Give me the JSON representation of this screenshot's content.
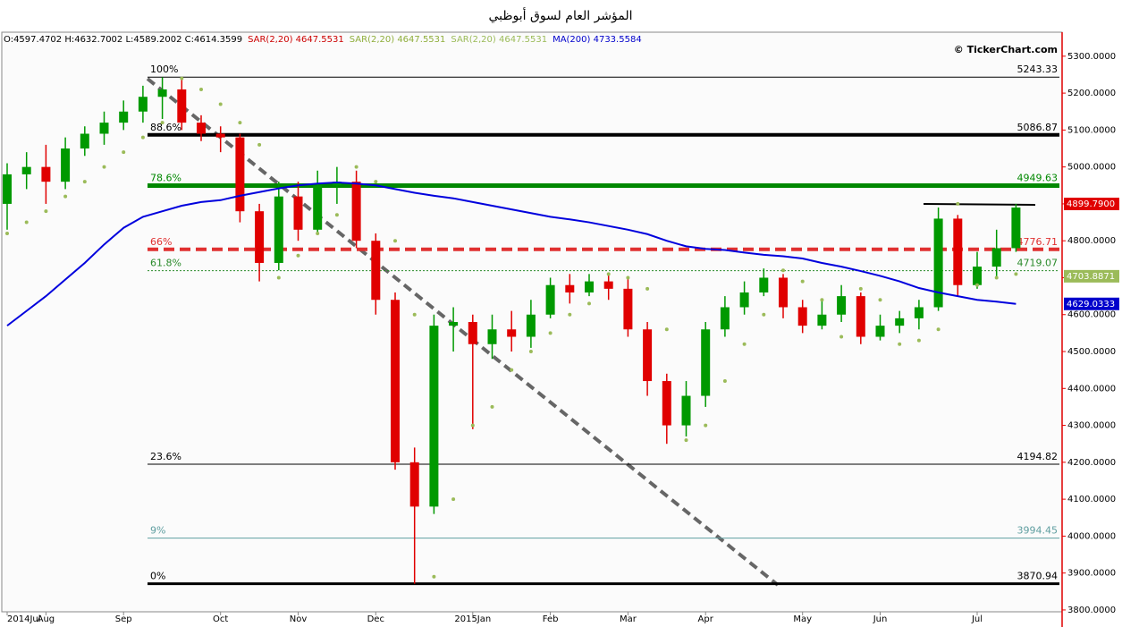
{
  "chart_data": {
    "type": "candlestick",
    "title": "المؤشر العام لسوق أبوظبي",
    "info": [
      {
        "text": "O:4597.4702 H:4632.7002 L:4589.2002 C:4614.3599",
        "color": "#000000"
      },
      {
        "text": "SAR(2,20) 4647.5531",
        "color": "#cc0000"
      },
      {
        "text": "SAR(2,20) 4647.5531",
        "color": "#8fae3c"
      },
      {
        "text": "SAR(2,20) 4647.5531",
        "color": "#9bbb59"
      },
      {
        "text": "MA(200) 4733.5584",
        "color": "#0000cc"
      }
    ],
    "watermark": "© TickerChart.com",
    "categories": [
      "2014Jul",
      null,
      "Aug",
      null,
      null,
      null,
      "Sep",
      null,
      null,
      null,
      null,
      "Oct",
      null,
      null,
      null,
      "Nov",
      null,
      null,
      null,
      "Dec",
      null,
      null,
      null,
      null,
      "2015Jan",
      null,
      null,
      null,
      "Feb",
      null,
      null,
      null,
      "Mar",
      null,
      null,
      null,
      "Apr",
      null,
      null,
      null,
      null,
      "May",
      null,
      null,
      null,
      "Jun",
      null,
      null,
      null,
      null,
      "Jul",
      null,
      null
    ],
    "open": [
      4900,
      4980,
      5000,
      4960,
      5050,
      5090,
      5120,
      5150,
      5190,
      5210,
      5120,
      5090,
      5080,
      4880,
      4740,
      4920,
      4830,
      4950,
      4960,
      4800,
      4640,
      4200,
      4080,
      4570,
      4580,
      4520,
      4560,
      4540,
      4600,
      4680,
      4660,
      4690,
      4670,
      4560,
      4420,
      4300,
      4380,
      4560,
      4620,
      4660,
      4700,
      4620,
      4570,
      4600,
      4650,
      4540,
      4570,
      4590,
      4620,
      4860,
      4680,
      4730,
      4780
    ],
    "high": [
      5010,
      5040,
      5060,
      5080,
      5110,
      5150,
      5180,
      5220,
      5243,
      5243,
      5140,
      5110,
      5090,
      4900,
      4960,
      4960,
      4990,
      5000,
      4990,
      4820,
      4660,
      4240,
      4600,
      4620,
      4600,
      4600,
      4610,
      4640,
      4700,
      4710,
      4710,
      4710,
      4700,
      4580,
      4440,
      4420,
      4580,
      4650,
      4690,
      4725,
      4710,
      4640,
      4640,
      4680,
      4660,
      4600,
      4610,
      4640,
      4890,
      4870,
      4770,
      4830,
      4900
    ],
    "low": [
      4830,
      4940,
      4900,
      4940,
      5030,
      5060,
      5100,
      5120,
      5130,
      5100,
      5070,
      5040,
      4850,
      4690,
      4720,
      4800,
      4820,
      4900,
      4780,
      4600,
      4180,
      3871,
      4060,
      4500,
      4290,
      4480,
      4500,
      4510,
      4590,
      4630,
      4650,
      4640,
      4540,
      4380,
      4250,
      4270,
      4350,
      4540,
      4600,
      4650,
      4590,
      4550,
      4560,
      4580,
      4520,
      4530,
      4550,
      4560,
      4610,
      4650,
      4670,
      4700,
      4770
    ],
    "close": [
      4980,
      5000,
      4960,
      5050,
      5090,
      5120,
      5150,
      5190,
      5210,
      5120,
      5090,
      5080,
      4880,
      4740,
      4920,
      4830,
      4950,
      4960,
      4800,
      4640,
      4200,
      4080,
      4570,
      4580,
      4520,
      4560,
      4540,
      4600,
      4680,
      4660,
      4690,
      4670,
      4560,
      4420,
      4300,
      4380,
      4560,
      4620,
      4660,
      4700,
      4620,
      4570,
      4600,
      4650,
      4540,
      4570,
      4590,
      4620,
      4860,
      4680,
      4730,
      4780,
      4890
    ],
    "up_color": "#009900",
    "down_color": "#e00000",
    "series": [
      {
        "color": "#0000dd",
        "style": "line",
        "values": [
          4570,
          4610,
          4650,
          4695,
          4740,
          4790,
          4835,
          4865,
          4880,
          4895,
          4905,
          4910,
          4922,
          4932,
          4942,
          4950,
          4955,
          4958,
          4955,
          4950,
          4940,
          4930,
          4922,
          4915,
          4905,
          4895,
          4885,
          4875,
          4865,
          4858,
          4850,
          4840,
          4830,
          4818,
          4800,
          4785,
          4778,
          4775,
          4768,
          4762,
          4758,
          4752,
          4740,
          4730,
          4718,
          4705,
          4690,
          4672,
          4660,
          4650,
          4640,
          4635,
          4629
        ]
      },
      {
        "color": "#9bbb59",
        "style": "dots",
        "values": [
          4820,
          4850,
          4880,
          4920,
          4960,
          5000,
          5040,
          5080,
          5120,
          5240,
          5210,
          5170,
          5120,
          5060,
          4700,
          4760,
          4820,
          4870,
          5000,
          4960,
          4800,
          4600,
          3890,
          4100,
          4300,
          4350,
          4450,
          4500,
          4550,
          4600,
          4630,
          4710,
          4700,
          4670,
          4560,
          4260,
          4300,
          4420,
          4520,
          4600,
          4720,
          4690,
          4640,
          4540,
          4670,
          4640,
          4520,
          4530,
          4560,
          4900,
          4680,
          4700,
          4710
        ]
      }
    ],
    "levels": [
      {
        "label": "100%",
        "value": 5243.33,
        "color": "#000000",
        "width": 1,
        "dash": "none"
      },
      {
        "label": "88.6%",
        "value": 5086.87,
        "color": "#000000",
        "width": 4,
        "dash": "none"
      },
      {
        "label": "78.6%",
        "value": 4949.63,
        "color": "#008800",
        "width": 5,
        "dash": "none"
      },
      {
        "label": "66%",
        "value": 4776.71,
        "color": "#e03030",
        "width": 4,
        "dash": "12,6"
      },
      {
        "label": "61.8%",
        "value": 4719.07,
        "color": "#2a8a2a",
        "width": 1,
        "dash": "2,2"
      },
      {
        "label": "23.6%",
        "value": 4194.82,
        "color": "#000000",
        "width": 1,
        "dash": "none"
      },
      {
        "label": "9%",
        "value": 3994.45,
        "color": "#5f9ea0",
        "width": 1,
        "dash": "none"
      },
      {
        "label": "0%",
        "value": 3870.94,
        "color": "#000000",
        "width": 3,
        "dash": "none"
      }
    ],
    "ylim": [
      3795,
      5365
    ],
    "yticks": [
      {
        "value": 3800,
        "label": "3800.0000"
      },
      {
        "value": 3900,
        "label": "3900.0000"
      },
      {
        "value": 4000,
        "label": "4000.0000"
      },
      {
        "value": 4100,
        "label": "4100.0000"
      },
      {
        "value": 4200,
        "label": "4200.0000"
      },
      {
        "value": 4300,
        "label": "4300.0000"
      },
      {
        "value": 4400,
        "label": "4400.0000"
      },
      {
        "value": 4500,
        "label": "4500.0000"
      },
      {
        "value": 4600,
        "label": "4600.0000"
      },
      {
        "value": 4700,
        "label": "4700.0000"
      },
      {
        "value": 4800,
        "label": "4800.0000"
      },
      {
        "value": 4900,
        "label": "4900.0000"
      },
      {
        "value": 5000,
        "label": "5000.0000"
      },
      {
        "value": 5100,
        "label": "5100.0000"
      },
      {
        "value": 5200,
        "label": "5200.0000"
      },
      {
        "value": 5300,
        "label": "5300.0000"
      }
    ],
    "price_tags": [
      {
        "value": 4899.79,
        "label": "4899.7900",
        "color": "#e00000"
      },
      {
        "value": 4703.8871,
        "label": "4703.8871",
        "color": "#9bbb59"
      },
      {
        "value": 4629.0333,
        "label": "4629.0333",
        "color": "#0000cc"
      }
    ]
  }
}
